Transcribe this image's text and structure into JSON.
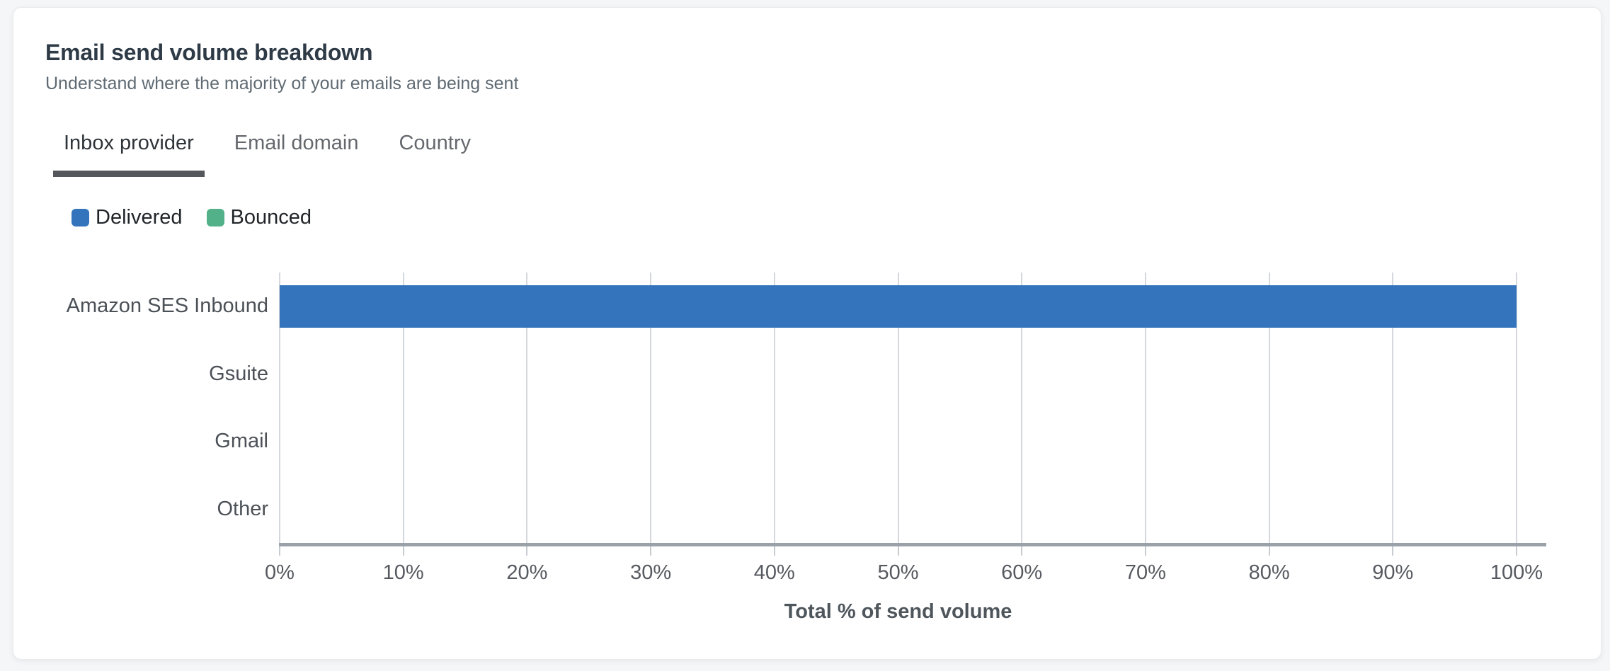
{
  "header": {
    "title": "Email send volume breakdown",
    "subtitle": "Understand where the majority of your emails are being sent"
  },
  "tabs": [
    {
      "label": "Inbox provider",
      "active": true
    },
    {
      "label": "Email domain",
      "active": false
    },
    {
      "label": "Country",
      "active": false
    }
  ],
  "colors": {
    "delivered": "#3374bd",
    "bounced": "#52b189",
    "active_tab_underline": "#54585d",
    "gridline": "#d4d8dd",
    "axis_line": "#9ba1a8",
    "tick": "#c7ccd2"
  },
  "chart_data": {
    "type": "bar",
    "orientation": "horizontal",
    "categories": [
      "Amazon SES Inbound",
      "Gsuite",
      "Gmail",
      "Other"
    ],
    "series": [
      {
        "name": "Delivered",
        "color": "#3374bd",
        "values": [
          100,
          0,
          0,
          0
        ]
      },
      {
        "name": "Bounced",
        "color": "#52b189",
        "values": [
          0,
          0,
          0,
          0
        ]
      }
    ],
    "xlabel": "Total % of send volume",
    "xlim": [
      0,
      100
    ],
    "x_tick_labels": [
      "0%",
      "10%",
      "20%",
      "30%",
      "40%",
      "50%",
      "60%",
      "70%",
      "80%",
      "90%",
      "100%"
    ],
    "grid": true,
    "legend_position": "top-left"
  }
}
